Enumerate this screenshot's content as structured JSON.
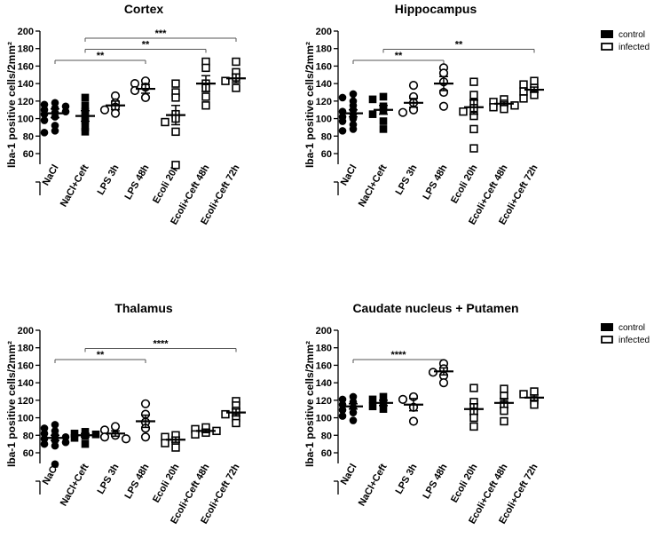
{
  "figure": {
    "legend": {
      "entries": [
        {
          "label": "control",
          "marker": "filled-square",
          "color": "#000000"
        },
        {
          "label": "infected",
          "marker": "open-square",
          "color": "#000000"
        }
      ],
      "placement": "top-right"
    }
  },
  "chart_data": [
    {
      "type": "scatter",
      "title": "Cortex",
      "ylabel": "Iba-1 positive cells/2mm²",
      "ylim": [
        60,
        200
      ],
      "yticks": [
        60,
        80,
        100,
        120,
        140,
        160,
        180,
        200
      ],
      "categories": [
        "NaCl",
        "NaCl+Ceft",
        "LPS 3h",
        "LPS 48h",
        "Ecoli 20h",
        "Ecoli+Ceft 48h",
        "Ecoli+Ceft 72h"
      ],
      "groups": [
        {
          "category": "NaCl",
          "marker": "filled-circle",
          "mean": 106,
          "sem": 5,
          "points": [
            118,
            116,
            114,
            112,
            110,
            108,
            107,
            105,
            102,
            98,
            92,
            86,
            84
          ]
        },
        {
          "category": "NaCl+Ceft",
          "marker": "filled-square",
          "mean": 103,
          "sem": 6,
          "points": [
            124,
            115,
            108,
            103,
            98,
            90,
            85
          ]
        },
        {
          "category": "LPS 3h",
          "marker": "open-circle",
          "mean": 115,
          "sem": 5,
          "points": [
            126,
            118,
            113,
            110,
            106
          ]
        },
        {
          "category": "LPS 48h",
          "marker": "open-circle",
          "mean": 134,
          "sem": 5,
          "points": [
            143,
            140,
            136,
            132,
            124
          ]
        },
        {
          "category": "Ecoli 20h",
          "marker": "open-square",
          "mean": 104,
          "sem": 11,
          "points": [
            140,
            130,
            124,
            105,
            100,
            96,
            85,
            47
          ]
        },
        {
          "category": "Ecoli+Ceft 48h",
          "marker": "open-square",
          "mean": 140,
          "sem": 9,
          "points": [
            165,
            158,
            140,
            135,
            125,
            115
          ]
        },
        {
          "category": "Ecoli+Ceft 72h",
          "marker": "open-square",
          "mean": 146,
          "sem": 5,
          "points": [
            165,
            153,
            147,
            143,
            135
          ]
        }
      ],
      "significance": [
        {
          "from": "NaCl",
          "to": "LPS 48h",
          "label": "**"
        },
        {
          "from": "NaCl+Ceft",
          "to": "Ecoli+Ceft 48h",
          "label": "**"
        },
        {
          "from": "NaCl+Ceft",
          "to": "Ecoli+Ceft 72h",
          "label": "***"
        }
      ]
    },
    {
      "type": "scatter",
      "title": "Hippocampus",
      "ylabel": "Iba-1 positive cells/2mm²",
      "ylim": [
        60,
        200
      ],
      "yticks": [
        60,
        80,
        100,
        120,
        140,
        160,
        180,
        200
      ],
      "categories": [
        "NaCl",
        "NaCl+Ceft",
        "LPS 3h",
        "LPS 48h",
        "Ecoli 20h",
        "Ecoli+Ceft 48h",
        "Ecoli+Ceft 72h"
      ],
      "groups": [
        {
          "category": "NaCl",
          "marker": "filled-circle",
          "mean": 106,
          "sem": 4,
          "points": [
            128,
            124,
            120,
            115,
            110,
            108,
            105,
            102,
            100,
            97,
            93,
            88,
            86
          ]
        },
        {
          "category": "NaCl+Ceft",
          "marker": "filled-square",
          "mean": 110,
          "sem": 5,
          "points": [
            125,
            122,
            114,
            109,
            105,
            97,
            88
          ]
        },
        {
          "category": "LPS 3h",
          "marker": "open-circle",
          "mean": 118,
          "sem": 5,
          "points": [
            138,
            125,
            118,
            110,
            107
          ]
        },
        {
          "category": "LPS 48h",
          "marker": "open-circle",
          "mean": 140,
          "sem": 8,
          "points": [
            158,
            152,
            142,
            130,
            114
          ]
        },
        {
          "category": "Ecoli 20h",
          "marker": "open-square",
          "mean": 113,
          "sem": 8,
          "points": [
            142,
            127,
            118,
            112,
            108,
            103,
            88,
            66
          ]
        },
        {
          "category": "Ecoli+Ceft 48h",
          "marker": "open-square",
          "mean": 117,
          "sem": 2,
          "points": [
            122,
            119,
            117,
            115,
            113,
            111
          ]
        },
        {
          "category": "Ecoli+Ceft 72h",
          "marker": "open-square",
          "mean": 133,
          "sem": 3,
          "points": [
            143,
            139,
            135,
            131,
            127,
            123
          ]
        }
      ],
      "significance": [
        {
          "from": "NaCl",
          "to": "LPS 48h",
          "label": "**"
        },
        {
          "from": "NaCl+Ceft",
          "to": "Ecoli+Ceft 72h",
          "label": "**"
        }
      ]
    },
    {
      "type": "scatter",
      "title": "Thalamus",
      "ylabel": "Iba-1 positive cells/2mm²",
      "ylim": [
        60,
        200
      ],
      "yticks": [
        60,
        80,
        100,
        120,
        140,
        160,
        180,
        200
      ],
      "categories": [
        "NaCl",
        "NaCl+Ceft",
        "LPS 3h",
        "LPS 48h",
        "Ecoli 20h",
        "Ecoli+Ceft 48h",
        "Ecoli+Ceft 72h"
      ],
      "groups": [
        {
          "category": "NaCl",
          "marker": "filled-circle",
          "mean": 77,
          "sem": 3,
          "points": [
            92,
            88,
            85,
            82,
            80,
            78,
            76,
            74,
            72,
            70,
            68,
            47
          ]
        },
        {
          "category": "NaCl+Ceft",
          "marker": "filled-square",
          "mean": 80,
          "sem": 2,
          "points": [
            84,
            82,
            81,
            79,
            77,
            70
          ]
        },
        {
          "category": "LPS 3h",
          "marker": "open-circle",
          "mean": 82,
          "sem": 3,
          "points": [
            90,
            86,
            80,
            78,
            76
          ]
        },
        {
          "category": "LPS 48h",
          "marker": "open-circle",
          "mean": 96,
          "sem": 7,
          "points": [
            116,
            104,
            95,
            88,
            78
          ]
        },
        {
          "category": "Ecoli 20h",
          "marker": "open-square",
          "mean": 75,
          "sem": 3,
          "points": [
            80,
            78,
            74,
            71,
            66
          ]
        },
        {
          "category": "Ecoli+Ceft 48h",
          "marker": "open-square",
          "mean": 85,
          "sem": 2,
          "points": [
            89,
            87,
            85,
            83,
            81
          ]
        },
        {
          "category": "Ecoli+Ceft 72h",
          "marker": "open-square",
          "mean": 106,
          "sem": 4,
          "points": [
            119,
            114,
            108,
            104,
            100,
            94
          ]
        }
      ],
      "significance": [
        {
          "from": "NaCl",
          "to": "LPS 48h",
          "label": "**"
        },
        {
          "from": "NaCl+Ceft",
          "to": "Ecoli+Ceft 72h",
          "label": "****"
        }
      ]
    },
    {
      "type": "scatter",
      "title": "Caudate nucleus + Putamen",
      "ylabel": "Iba-1 positive cells/2mm²",
      "ylim": [
        60,
        200
      ],
      "yticks": [
        60,
        80,
        100,
        120,
        140,
        160,
        180,
        200
      ],
      "categories": [
        "NaCl",
        "NaCl+Ceft",
        "LPS 3h",
        "LPS 48h",
        "Ecoli 20h",
        "Ecoli+Ceft 48h",
        "Ecoli+Ceft 72h"
      ],
      "groups": [
        {
          "category": "NaCl",
          "marker": "filled-circle",
          "mean": 113,
          "sem": 3,
          "points": [
            124,
            121,
            118,
            115,
            112,
            109,
            106,
            102,
            97
          ]
        },
        {
          "category": "NaCl+Ceft",
          "marker": "filled-square",
          "mean": 117,
          "sem": 3,
          "points": [
            124,
            121,
            117,
            113,
            110
          ]
        },
        {
          "category": "LPS 3h",
          "marker": "open-circle",
          "mean": 115,
          "sem": 7,
          "points": [
            124,
            121,
            112,
            96
          ]
        },
        {
          "category": "LPS 48h",
          "marker": "open-circle",
          "mean": 153,
          "sem": 4,
          "points": [
            162,
            156,
            152,
            148,
            140
          ]
        },
        {
          "category": "Ecoli 20h",
          "marker": "open-square",
          "mean": 110,
          "sem": 6,
          "points": [
            134,
            118,
            112,
            107,
            100,
            90
          ]
        },
        {
          "category": "Ecoli+Ceft 48h",
          "marker": "open-square",
          "mean": 117,
          "sem": 5,
          "points": [
            133,
            125,
            115,
            108,
            96
          ]
        },
        {
          "category": "Ecoli+Ceft 72h",
          "marker": "open-square",
          "mean": 123,
          "sem": 3,
          "points": [
            130,
            127,
            120,
            115
          ]
        }
      ],
      "significance": [
        {
          "from": "NaCl",
          "to": "LPS 48h",
          "label": "****"
        }
      ]
    }
  ]
}
